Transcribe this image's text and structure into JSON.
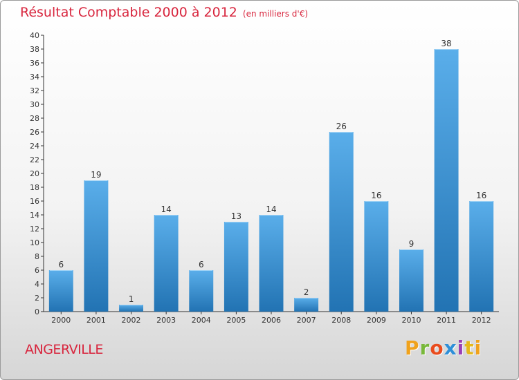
{
  "title": "Résultat Comptable 2000 à 2012",
  "title_unit": "(en milliers d'€)",
  "commune": "ANGERVILLE",
  "logo_text": "Proxiti",
  "colors": {
    "title": "#d8263e",
    "bar_light": "#5aaeea",
    "bar_dark": "#2273b3",
    "axis": "#333333"
  },
  "chart_data": {
    "type": "bar",
    "title": "Résultat Comptable 2000 à 2012",
    "subtitle": "(en milliers d'€)",
    "xlabel": "",
    "ylabel": "",
    "categories": [
      "2000",
      "2001",
      "2002",
      "2003",
      "2004",
      "2005",
      "2006",
      "2007",
      "2008",
      "2009",
      "2010",
      "2011",
      "2012"
    ],
    "values": [
      6,
      19,
      1,
      14,
      6,
      13,
      14,
      2,
      26,
      16,
      9,
      38,
      16
    ],
    "ylim": [
      0,
      40
    ],
    "ytick_step": 2,
    "grid": false,
    "data_labels": true
  }
}
